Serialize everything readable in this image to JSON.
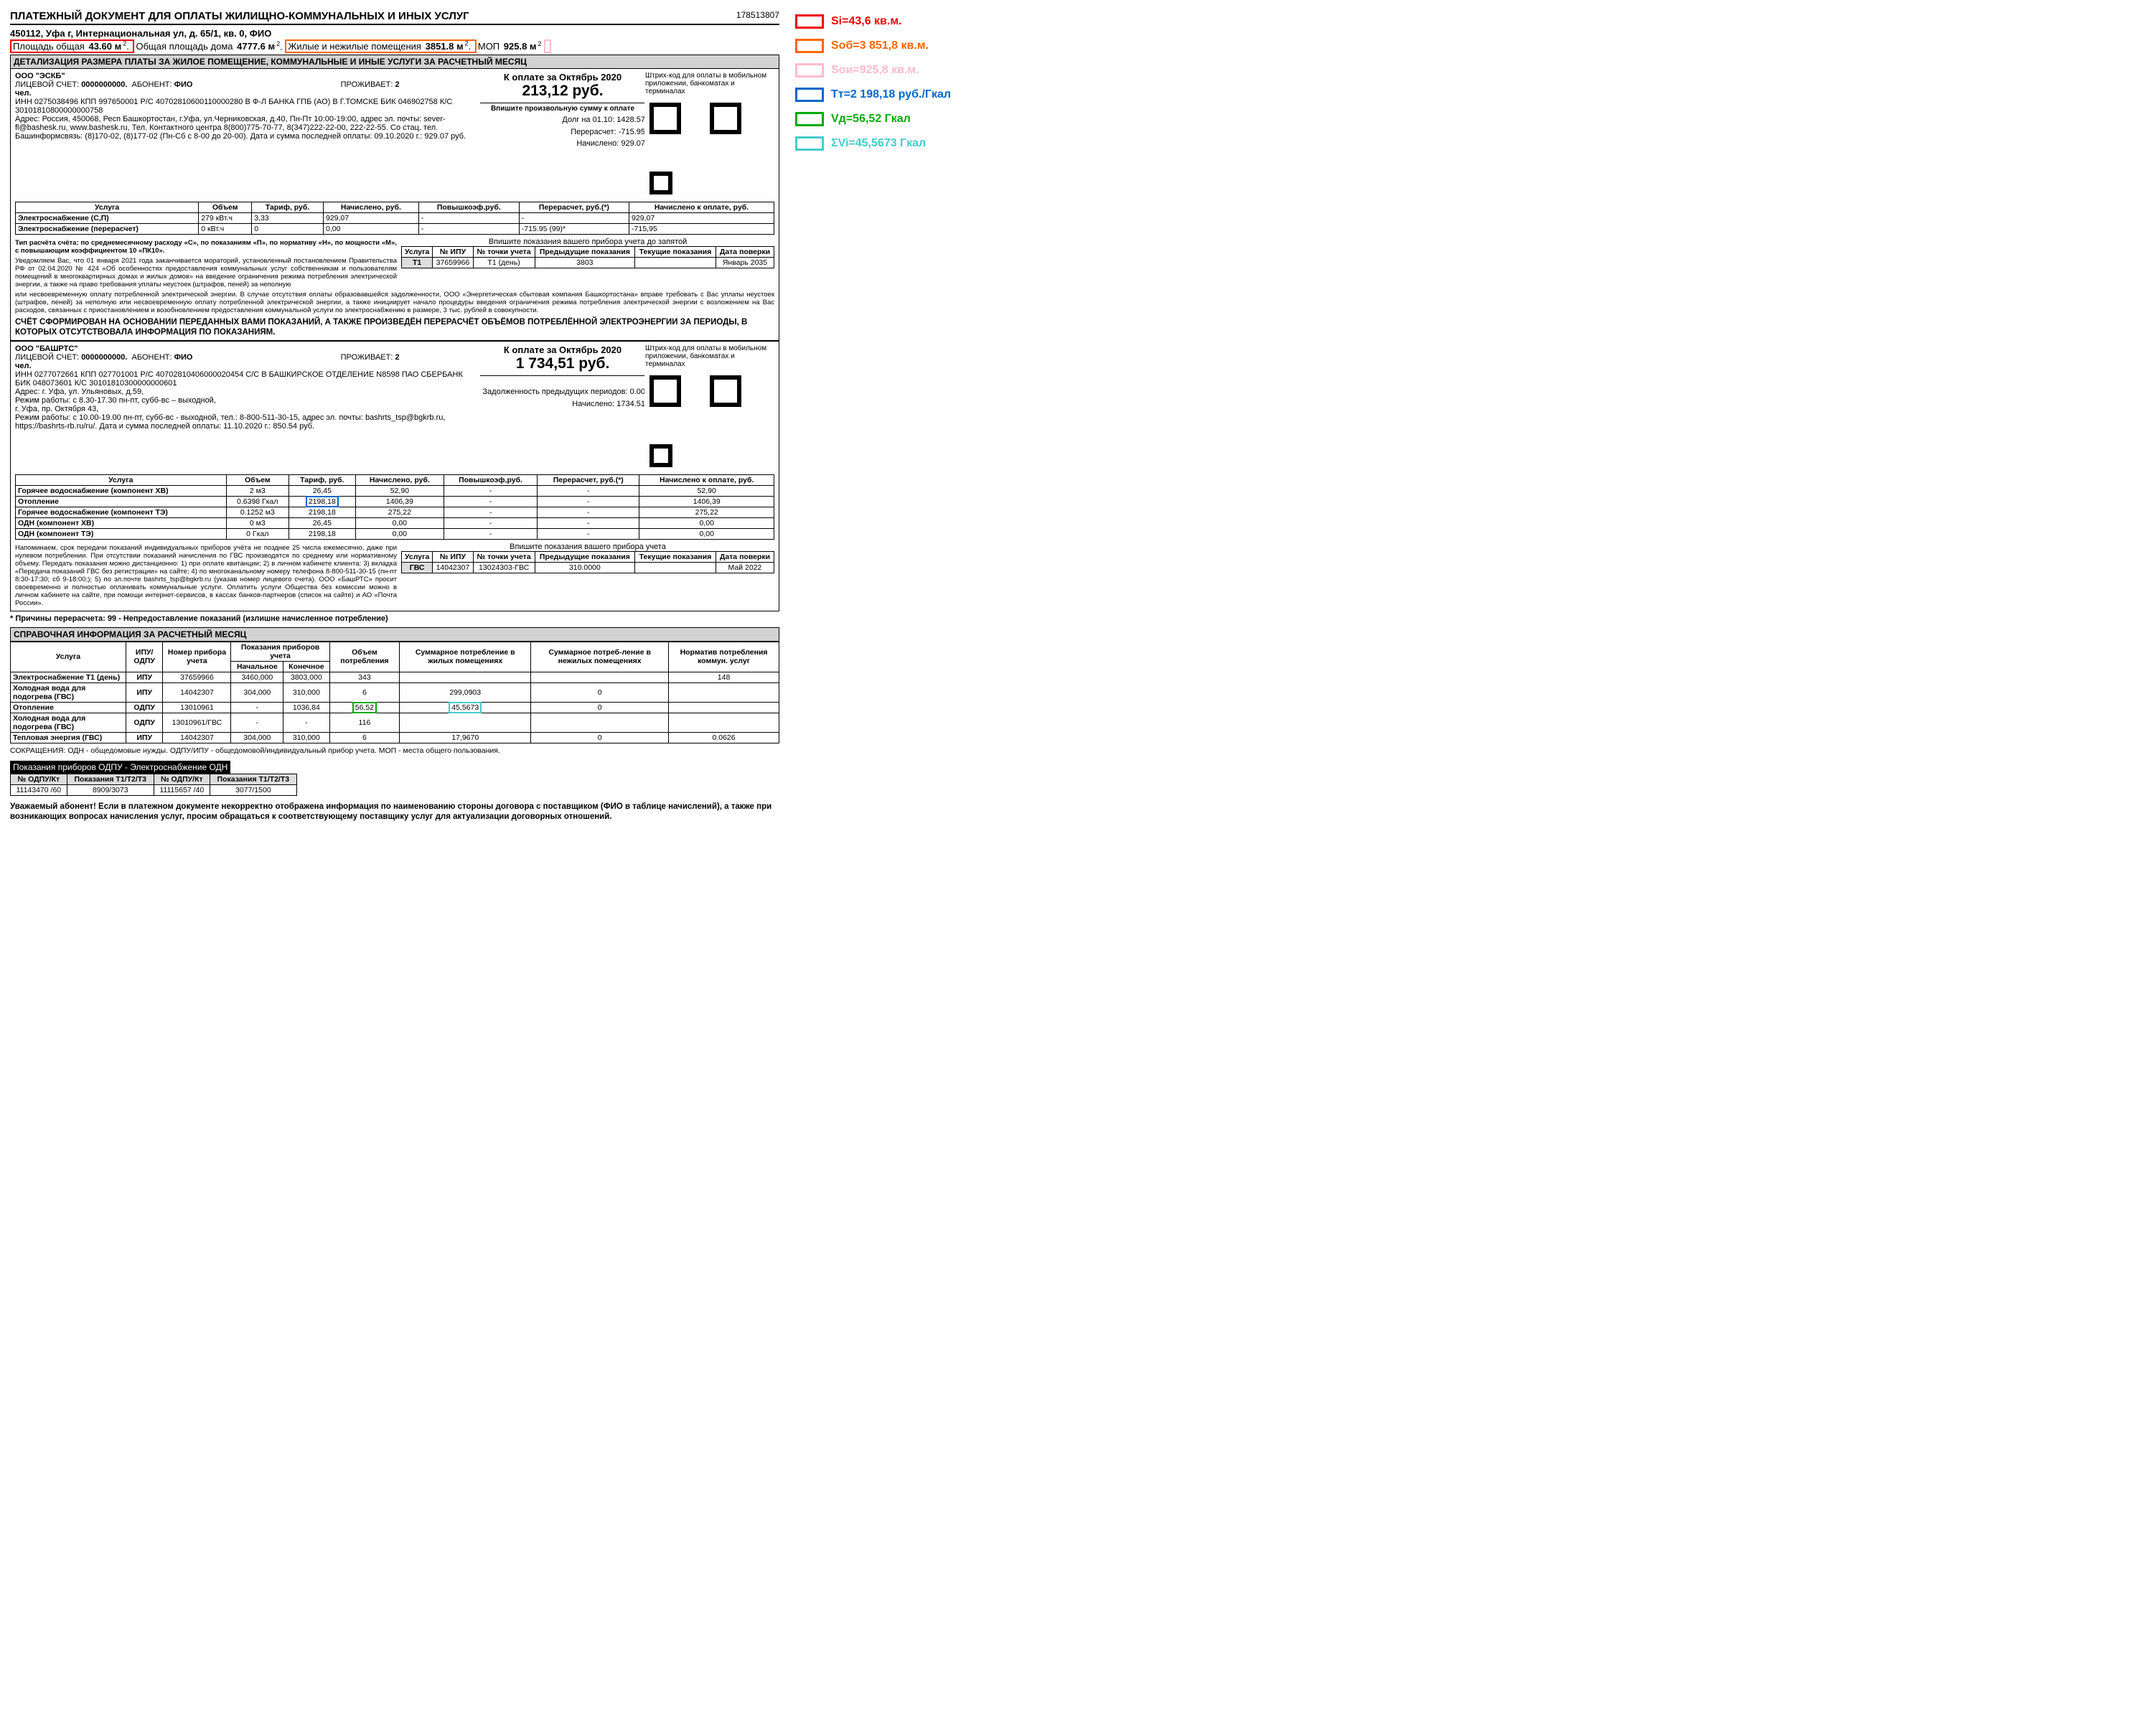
{
  "doc": {
    "title": "ПЛАТЕЖНЫЙ ДОКУМЕНТ ДЛЯ ОПЛАТЫ ЖИЛИЩНО-КОММУНАЛЬНЫХ И ИНЫХ УСЛУГ",
    "number": "178513807",
    "address": "450112, Уфа г, Интернациональная ул, д. 65/1, кв. 0, ФИО",
    "area_total_label": "Площадь общая",
    "area_total": "43.60 м",
    "house_area_label": "Общая площадь дома",
    "house_area": "4777.6 м",
    "living_label": "Жилые и нежилые помещения",
    "living_area": "3851.8 м",
    "mop_label": "МОП",
    "mop_area": "925.8 м"
  },
  "section1_header": "ДЕТАЛИЗАЦИЯ РАЗМЕРА ПЛАТЫ ЗА ЖИЛОЕ ПОМЕЩЕНИЕ, КОММУНАЛЬНЫЕ И ИНЫЕ УСЛУГИ ЗА РАСЧЕТНЫЙ МЕСЯЦ",
  "org1": {
    "name": "ООО \"ЭСКБ\"",
    "account_label": "ЛИЦЕВОЙ СЧЕТ:",
    "account": "0000000000.",
    "abonent_label": "АБОНЕНТ:",
    "abonent": "ФИО",
    "residents_label": "ПРОЖИВАЕТ:",
    "residents": "2",
    "people": "чел.",
    "bank": "ИНН 0275038496 КПП 997650001 Р/С 40702810600110000280 В Ф-Л БАНКА ГПБ (АО) В Г.ТОМСКЕ БИК 046902758 К/С 30101810800000000758",
    "addr": "Адрес: Россия, 450068, Респ Башкортостан, г.Уфа, ул.Черниковская, д.40, Пн-Пт 10:00-19:00, адрес эл. почты: sever-fl@bashesk.ru, www.bashesk.ru, Тел. Контактного центра 8(800)775-70-77, 8(347)222-22-00, 222-22-55. Со стац. тел. Башинформсвязь: (8)170-02, (8)177-02 (Пн-Сб с 8-00 до 20-00). Дата и сумма последней оплаты: 09.10.2020 г.: 929.07 руб.",
    "period_label": "К оплате за Октябрь 2020",
    "amount": "213,12 руб.",
    "custom_sum": "Впишите произвольную сумму к оплате",
    "debt": "Долг на 01.10: 1428.57",
    "recalc": "Перерасчет: -715.95",
    "charged": "Начислено: 929.07",
    "qr_note": "Штрих-код для оплаты в мобильном приложении, банкоматах и терминалах"
  },
  "t1": {
    "headers": [
      "Услуга",
      "Объем",
      "Тариф, руб.",
      "Начислено, руб.",
      "Повышкоэф,руб.",
      "Перерасчет, руб.(*)",
      "Начислено к оплате, руб."
    ],
    "rows": [
      [
        "Электроснабжение (С,П)",
        "279 кВт.ч",
        "3,33",
        "929,07",
        "-",
        "-",
        "929,07"
      ],
      [
        "Электроснабжение (перерасчет)",
        "0 кВт.ч",
        "0",
        "0,00",
        "-",
        "-715.95 (99)*",
        "-715,95"
      ]
    ]
  },
  "fine1": "Тип расчёта счёта: по среднемесячному расходу «С», по показаниям «П», по нормативу «Н», по мощности «М», с повышающим коэффициентом 10 «ПК10».",
  "fine2": "Уведомляем Вас, что 01 января 2021 года заканчивается мораторий, установленный постановлением Правительства РФ от 02.04.2020 № 424 «Об особенностях предоставления коммунальных услуг собственникам и пользователям помещений в многоквартирных домах и жилых домов» на введение ограничения режима потребления электрической энергии, а также на право требования уплаты неустоек (штрафов, пеней) за неполную",
  "fine3": "или несвоевременную оплату потребленной электрической энергии. В случае отсутствия оплаты образовавшейся задолженности, ООО «Энергетическая сбытовая компания Башкортостана» вправе требовать с Вас уплаты неустоек (штрафов, пеней) за неполную или несвоевременную оплату потребленной электрической энергии, а также инициирует начало процедуры введения ограничения режима потребления электрической энергии с возложением на Вас расходов, связанных с приостановлением и возобновлением предоставления коммунальной услуги по электроснабжению в размере, 3 тыс. рублей в совокупности.",
  "meter_note1": "Впишите показания вашего прибора учета до запятой",
  "meter_t1": {
    "headers": [
      "Услуга",
      "№ ИПУ",
      "№ точки учета",
      "Предыдущие показания",
      "Текущие показания",
      "Дата поверки"
    ],
    "row": [
      "Т1",
      "37659966",
      "Т1 (день)",
      "3803",
      "",
      "Январь 2035"
    ]
  },
  "notice1": "СЧЁТ СФОРМИРОВАН НА ОСНОВАНИИ ПЕРЕДАННЫХ ВАМИ ПОКАЗАНИЙ, А ТАКЖЕ ПРОИЗВЕДЁН ПЕРЕРАСЧЁТ ОБЪЁМОВ ПОТРЕБЛЁННОЙ ЭЛЕКТРОЭНЕРГИИ ЗА ПЕРИОДЫ, В КОТОРЫХ ОТСУТСТВОВАЛА ИНФОРМАЦИЯ ПО ПОКАЗАНИЯМ.",
  "org2": {
    "name": "ООО \"БАШРТС\"",
    "bank": "ИНН 0277072661 КПП 027701001 Р/С 40702810406000020454 С/С В БАШКИРСКОЕ ОТДЕЛЕНИЕ N8598 ПАО СБЕРБАНК БИК 048073601 К/С 30101810300000000601",
    "addr": "Адрес: г. Уфа, ул. Ульяновых, д.59,\nРежим работы: с 8.30-17.30 пн-пт, субб-вс – выходной,\nг. Уфа, пр. Октября 43,\nРежим работы: с 10.00-19.00 пн-пт, субб-вс - выходной, тел.: 8-800-511-30-15, адрес эл. почты: bashrts_tsp@bgkrb.ru, https://bashrts-rb.ru/ru/. Дата и сумма последней оплаты: 11.10.2020 г.: 850.54 руб.",
    "period_label": "К оплате за Октябрь 2020",
    "amount": "1 734,51 руб.",
    "debt": "Задолженность предыдущих периодов: 0.00",
    "charged": "Начислено: 1734.51"
  },
  "t2": {
    "rows": [
      [
        "Горячее водоснабжение (компонент ХВ)",
        "2 м3",
        "26,45",
        "52,90",
        "-",
        "-",
        "52,90"
      ],
      [
        "Отопление",
        "0.6398 Гкал",
        "2198,18",
        "1406,39",
        "-",
        "-",
        "1406,39"
      ],
      [
        "Горячее водоснабжение (компонент ТЭ)",
        "0.1252 м3",
        "2198,18",
        "275,22",
        "-",
        "-",
        "275,22"
      ],
      [
        "ОДН (компонент ХВ)",
        "0 м3",
        "26,45",
        "0,00",
        "-",
        "-",
        "0,00"
      ],
      [
        "ОДН (компонент ТЭ)",
        "0 Гкал",
        "2198,18",
        "0,00",
        "-",
        "-",
        "0,00"
      ]
    ]
  },
  "fine4": "Напоминаем, срок передачи показаний индивидуальных приборов учёта не позднее 25 числа ежемесячно, даже при нулевом потреблении. При отсутствии показаний начисления по ГВС производятся по среднему или нормативному объему. Передать показания можно дистанционно: 1) при оплате квитанции; 2) в личном кабинете клиента; 3) вкладка «Передача показаний ГВС без регистрации» на сайте; 4) по многоканальному номеру телефона 8-800-511-30-15 (пн-пт 8:30-17:30; сб 9-18:00;); 5) по эл.почте bashrts_tsp@bgkrb.ru (указав номер лицевого счета). ООО «БашРТС» просит своевременно и полностью оплачивать коммунальные услуги. Оплатить услуги Общества без комиссии можно в личном кабинете на сайте, при помощи интернет-сервисов, в кассах банков-партнеров (список на сайте) и АО «Почта России».",
  "meter_note2": "Впишите показания вашего прибора учета",
  "meter_t2": {
    "row": [
      "ГВС",
      "14042307",
      "13024303-ГВС",
      "310.0000",
      "",
      "Май 2022"
    ]
  },
  "footnote": "* Причины перерасчета: 99 - Непредоставление показаний (излишне начисленное потребление)",
  "ref_header": "СПРАВОЧНАЯ ИНФОРМАЦИЯ ЗА РАСЧЕТНЫЙ МЕСЯЦ",
  "ref": {
    "headers": [
      "Услуга",
      "ИПУ/ОДПУ",
      "Номер прибора учета",
      "Начальное",
      "Конечное",
      "Объем потребления",
      "Суммарное потребление в жилых помещениях",
      "Суммарное потреб-ление в нежилых помещениях",
      "Норматив потребления коммун. услуг"
    ],
    "sub": "Показания приборов учета",
    "rows": [
      [
        "Электроснабжение Т1 (день)",
        "ИПУ",
        "37659966",
        "3460,000",
        "3803,000",
        "343",
        "",
        "",
        "148"
      ],
      [
        "Холодная вода для подогрева (ГВС)",
        "ИПУ",
        "14042307",
        "304,000",
        "310,000",
        "6",
        "299,0903",
        "0",
        ""
      ],
      [
        "Отопление",
        "ОДПУ",
        "13010961",
        "-",
        "1036,84",
        "56,52",
        "45,5673",
        "0",
        ""
      ],
      [
        "Холодная вода для подогрева (ГВС)",
        "ОДПУ",
        "13010961/ГВС",
        "-",
        "-",
        "116",
        "",
        "",
        ""
      ],
      [
        "Тепловая энергия (ГВС)",
        "ИПУ",
        "14042307",
        "304,000",
        "310,000",
        "6",
        "17,9670",
        "0",
        "0.0626"
      ]
    ]
  },
  "abbr": "СОКРАЩЕНИЯ: ОДН - общедомовые нужды. ОДПУ/ИПУ - общедомовой/индивидуальный прибор учета. МОП - места общего пользования.",
  "dark": "Показания приборов ОДПУ - Электроснабжение ОДН",
  "odpu": {
    "headers": [
      "№ ОДПУ/Кт",
      "Показания Т1/Т2/Т3",
      "№ ОДПУ/Кт",
      "Показания Т1/Т2/Т3"
    ],
    "row": [
      "11143470 /60",
      "8909/3073",
      "11115657 /40",
      "3077/1500"
    ]
  },
  "final": "Уважаемый абонент! Если в платежном документе некорректно отображена информация по наименованию стороны договора с поставщиком (ФИО в таблице начислений), а также при возникающих вопросах начисления услуг, просим обращаться к соответствующему поставщику услуг для актуализации договорных отношений.",
  "legend": [
    {
      "color": "#e00",
      "text": "Si=43,6 кв.м."
    },
    {
      "color": "#f60",
      "text": "Sоб=3 851,8 кв.м."
    },
    {
      "color": "#fbc",
      "text": "Sои=925,8 кв.м."
    },
    {
      "color": "#06c",
      "text": "Tт=2 198,18 руб./Гкал"
    },
    {
      "color": "#0a0",
      "text": "Vд=56,52 Гкал"
    },
    {
      "color": "#4cc",
      "text": "ΣVi=45,5673 Гкал"
    }
  ]
}
